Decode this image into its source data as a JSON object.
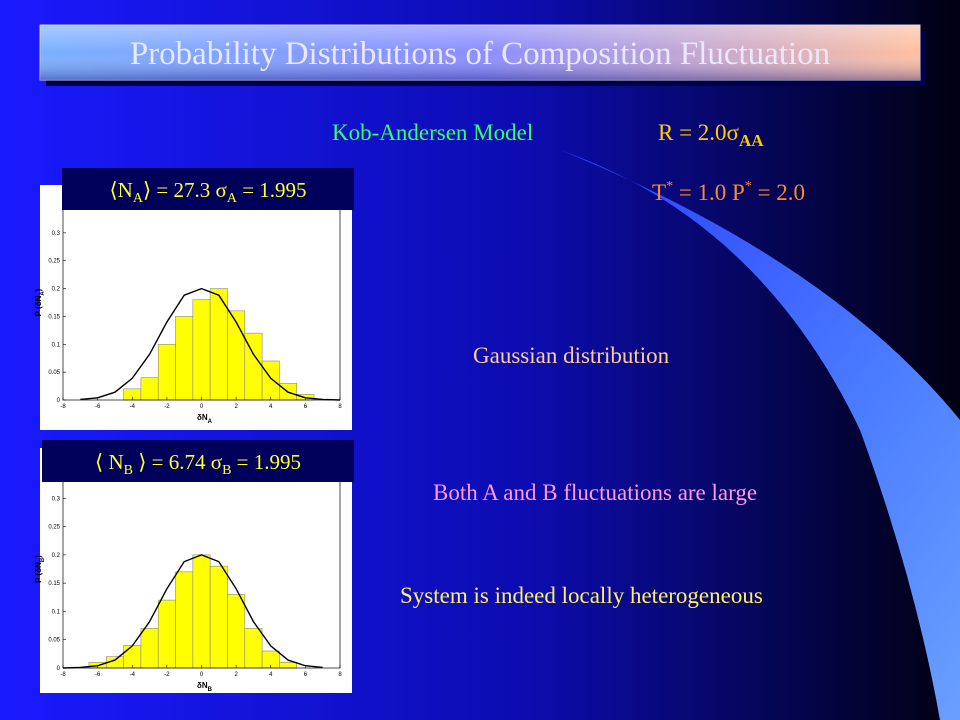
{
  "header": {
    "title": "Probability Distributions of Composition Fluctuation"
  },
  "model": {
    "name": "Kob-Andersen Model",
    "range": [
      "R = 2.0σ",
      "AA"
    ]
  },
  "state": [
    "T",
    "*",
    " = 1.0   P",
    "*",
    " = 2.0"
  ],
  "notes": [
    "Gaussian distribution",
    "Both A and B fluctuations are large",
    "System is indeed locally heterogeneous"
  ],
  "chart_data": [
    {
      "type": "histogram",
      "title": [
        "⟨N",
        "A",
        "⟩ = 27.3 σ",
        "A",
        " = 1.995"
      ],
      "xlabel": [
        "δN",
        "A"
      ],
      "ylabel": [
        "P (δN",
        "A",
        ")"
      ],
      "bins": [
        -4.5,
        -3.5,
        -2.5,
        -1.5,
        -0.5,
        0.5,
        1.5,
        2.5,
        3.5,
        4.5,
        5.5,
        6.5
      ],
      "values": [
        0.02,
        0.04,
        0.1,
        0.15,
        0.18,
        0.2,
        0.16,
        0.12,
        0.07,
        0.03,
        0.01
      ],
      "color": "#ffff00",
      "curve": {
        "x": [
          -7,
          -6,
          -5,
          -4,
          -3,
          -2,
          -1,
          0,
          1,
          2,
          3,
          4,
          5,
          6,
          7,
          8
        ],
        "values": [
          0.001,
          0.004,
          0.014,
          0.039,
          0.082,
          0.14,
          0.188,
          0.2,
          0.188,
          0.14,
          0.082,
          0.039,
          0.014,
          0.004,
          0.001,
          0
        ],
        "color": "#000000"
      },
      "xlim": [
        -8,
        8
      ],
      "xticks": [
        -8,
        -6,
        -4,
        -2,
        0,
        2,
        4,
        6,
        8
      ],
      "ylim": [
        0,
        0.35
      ],
      "yticks": [
        0,
        0.05,
        0.1,
        0.15,
        0.2,
        0.25,
        0.3
      ]
    },
    {
      "type": "histogram",
      "title": [
        "⟨ N",
        "B",
        " ⟩ = 6.74 σ",
        "B",
        " = 1.995"
      ],
      "xlabel": [
        "δN",
        "B"
      ],
      "ylabel": [
        "P (δN",
        "B",
        ")"
      ],
      "bins": [
        -6.5,
        -5.5,
        -4.5,
        -3.5,
        -2.5,
        -1.5,
        -0.5,
        0.5,
        1.5,
        2.5,
        3.5,
        4.5,
        5.5
      ],
      "values": [
        0.01,
        0.02,
        0.04,
        0.07,
        0.12,
        0.17,
        0.2,
        0.18,
        0.13,
        0.07,
        0.03,
        0.01
      ],
      "color": "#ffff00",
      "curve": {
        "x": [
          -8,
          -7,
          -6,
          -5,
          -4,
          -3,
          -2,
          -1,
          0,
          1,
          2,
          3,
          4,
          5,
          6,
          7
        ],
        "values": [
          0,
          0.001,
          0.004,
          0.014,
          0.039,
          0.082,
          0.14,
          0.188,
          0.2,
          0.188,
          0.14,
          0.082,
          0.039,
          0.014,
          0.004,
          0.001
        ],
        "color": "#000000"
      },
      "xlim": [
        -8,
        8
      ],
      "xticks": [
        -8,
        -6,
        -4,
        -2,
        0,
        2,
        4,
        6,
        8
      ],
      "ylim": [
        0,
        0.35
      ],
      "yticks": [
        0,
        0.05,
        0.1,
        0.15,
        0.2,
        0.25,
        0.3
      ]
    }
  ]
}
